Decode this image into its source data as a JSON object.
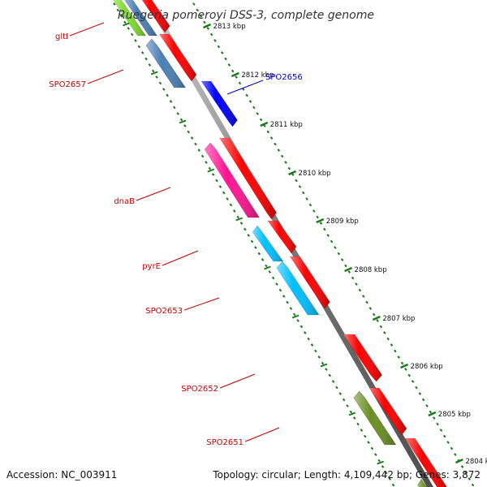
{
  "title": "Ruegeria pomeroyi DSS-3, complete genome",
  "footer": {
    "accession": "Accession: NC_003911",
    "topology": "Topology: circular; Length: 4,109,442 bp; Genes: 3,872"
  },
  "colors": {
    "backbone": "#8c8c8c",
    "tick": "#1a7a1a",
    "forward_gene": "#ff0000",
    "label_red": "#cc0000",
    "label_blue": "#0000cc"
  },
  "ruler_labels": [
    "2813 kbp",
    "2812 kbp",
    "2811 kbp",
    "2810 kbp",
    "2809 kbp",
    "2808 kbp",
    "2807 kbp",
    "2806 kbp",
    "2805 kbp",
    "2804 kbp"
  ],
  "gene_labels": [
    {
      "text": "gltI",
      "color": "red"
    },
    {
      "text": "SPO2657",
      "color": "red"
    },
    {
      "text": "SPO2656",
      "color": "blue"
    },
    {
      "text": "dnaB",
      "color": "red"
    },
    {
      "text": "pyrE",
      "color": "red"
    },
    {
      "text": "SPO2653",
      "color": "red"
    },
    {
      "text": "SPO2652",
      "color": "red"
    },
    {
      "text": "SPO2651",
      "color": "red"
    }
  ],
  "genes": [
    {
      "strand": "reverse",
      "color": "#7fdc2c",
      "name": "gltI"
    },
    {
      "strand": "reverse",
      "color": "#4a7fb5",
      "name": "gltI"
    },
    {
      "strand": "forward",
      "color": "#ff0000"
    },
    {
      "strand": "reverse",
      "color": "#4a7fb5",
      "name": "SPO2657"
    },
    {
      "strand": "forward",
      "color": "#ff0000"
    },
    {
      "strand": "reverse-out",
      "color": "#0000ff",
      "name": "SPO2656"
    },
    {
      "strand": "reverse",
      "color": "#ff1493",
      "name": "dnaB"
    },
    {
      "strand": "forward",
      "color": "#ff0000"
    },
    {
      "strand": "reverse",
      "color": "#00bfff",
      "name": "pyrE"
    },
    {
      "strand": "forward",
      "color": "#ff0000"
    },
    {
      "strand": "reverse",
      "color": "#00bfff",
      "name": "SPO2653"
    },
    {
      "strand": "forward",
      "color": "#ff0000"
    },
    {
      "strand": "forward",
      "color": "#ff0000",
      "name": "SPO2652"
    },
    {
      "strand": "reverse",
      "color": "#6b8e23",
      "name": "SPO2651"
    },
    {
      "strand": "forward",
      "color": "#ff0000"
    },
    {
      "strand": "forward",
      "color": "#ff0000"
    },
    {
      "strand": "reverse",
      "color": "#6b8e23"
    }
  ]
}
